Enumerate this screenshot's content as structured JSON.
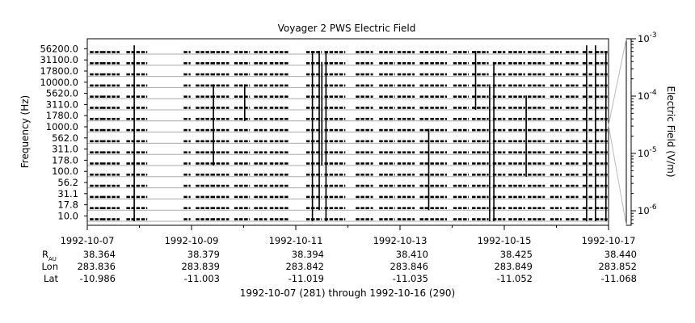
{
  "chart_data": {
    "type": "line",
    "title": "Voyager 2 PWS Electric Field",
    "xlabel": "1992-10-07 (281) through 1992-10-16 (290)",
    "ylabel": "Frequency (Hz)",
    "y2label": "Electric Field (V/m)",
    "x_ticks": [
      "1992-10-07",
      "1992-10-09",
      "1992-10-11",
      "1992-10-13",
      "1992-10-15",
      "1992-10-17"
    ],
    "x_range": [
      "1992-10-07",
      "1992-10-17"
    ],
    "frequency_channels": [
      "10.0",
      "17.8",
      "31.1",
      "56.2",
      "100.0",
      "178.0",
      "311.0",
      "562.0",
      "1000.0",
      "1780.0",
      "3110.0",
      "5620.0",
      "10000.0",
      "17800.0",
      "31100.0",
      "56200.0"
    ],
    "y2_ticks": [
      "10",
      "10",
      "10",
      "10"
    ],
    "y2_exponents": [
      "-3",
      "-4",
      "-5",
      "-6"
    ],
    "y2_scale": "log",
    "y2_range": [
      1e-06,
      0.001
    ],
    "ephemeris": {
      "rows": [
        {
          "label": "R",
          "sub": "AU",
          "values": [
            "38.364",
            "38.379",
            "38.394",
            "38.410",
            "38.425",
            "38.440"
          ]
        },
        {
          "label": "Lon",
          "sub": "",
          "values": [
            "283.836",
            "283.839",
            "283.842",
            "283.846",
            "283.849",
            "283.852"
          ]
        },
        {
          "label": "Lat",
          "sub": "",
          "values": [
            "-10.986",
            "-11.003",
            "-11.019",
            "-11.035",
            "-11.052",
            "-11.068"
          ]
        }
      ]
    },
    "data_segments_days": [
      [
        0.05,
        0.28
      ],
      [
        0.28,
        0.62
      ],
      [
        0.75,
        1.15
      ],
      [
        1.85,
        1.98
      ],
      [
        2.08,
        2.38
      ],
      [
        2.38,
        2.72
      ],
      [
        2.82,
        3.12
      ],
      [
        3.2,
        3.45
      ],
      [
        3.5,
        3.88
      ],
      [
        4.2,
        4.5
      ],
      [
        4.55,
        4.95
      ],
      [
        5.15,
        5.48
      ],
      [
        5.6,
        5.9
      ],
      [
        5.95,
        6.28
      ],
      [
        6.38,
        6.55
      ],
      [
        6.58,
        6.9
      ],
      [
        7.02,
        7.32
      ],
      [
        7.38,
        7.7
      ],
      [
        7.78,
        8.02
      ],
      [
        8.08,
        8.4
      ],
      [
        8.45,
        8.78
      ],
      [
        8.88,
        9.1
      ],
      [
        9.18,
        9.42
      ],
      [
        9.5,
        9.58
      ],
      [
        9.62,
        9.7
      ],
      [
        9.75,
        9.9
      ],
      [
        9.92,
        9.98
      ]
    ],
    "spikes": [
      {
        "day": 0.9,
        "top": 15.5,
        "bottom": 0
      },
      {
        "day": 2.42,
        "top": 12,
        "bottom": 5
      },
      {
        "day": 3.02,
        "top": 12,
        "bottom": 9
      },
      {
        "day": 4.32,
        "top": 15,
        "bottom": 0
      },
      {
        "day": 4.45,
        "top": 15,
        "bottom": 1
      },
      {
        "day": 4.5,
        "top": 14,
        "bottom": 5
      },
      {
        "day": 4.58,
        "top": 15,
        "bottom": 0
      },
      {
        "day": 6.55,
        "top": 8,
        "bottom": 1
      },
      {
        "day": 7.45,
        "top": 15,
        "bottom": 10
      },
      {
        "day": 7.72,
        "top": 12,
        "bottom": 0
      },
      {
        "day": 7.8,
        "top": 14,
        "bottom": 0
      },
      {
        "day": 8.42,
        "top": 11,
        "bottom": 4
      },
      {
        "day": 9.58,
        "top": 15.5,
        "bottom": 0
      },
      {
        "day": 9.75,
        "top": 15.5,
        "bottom": 0
      },
      {
        "day": 9.95,
        "top": 15,
        "bottom": 0
      }
    ]
  }
}
